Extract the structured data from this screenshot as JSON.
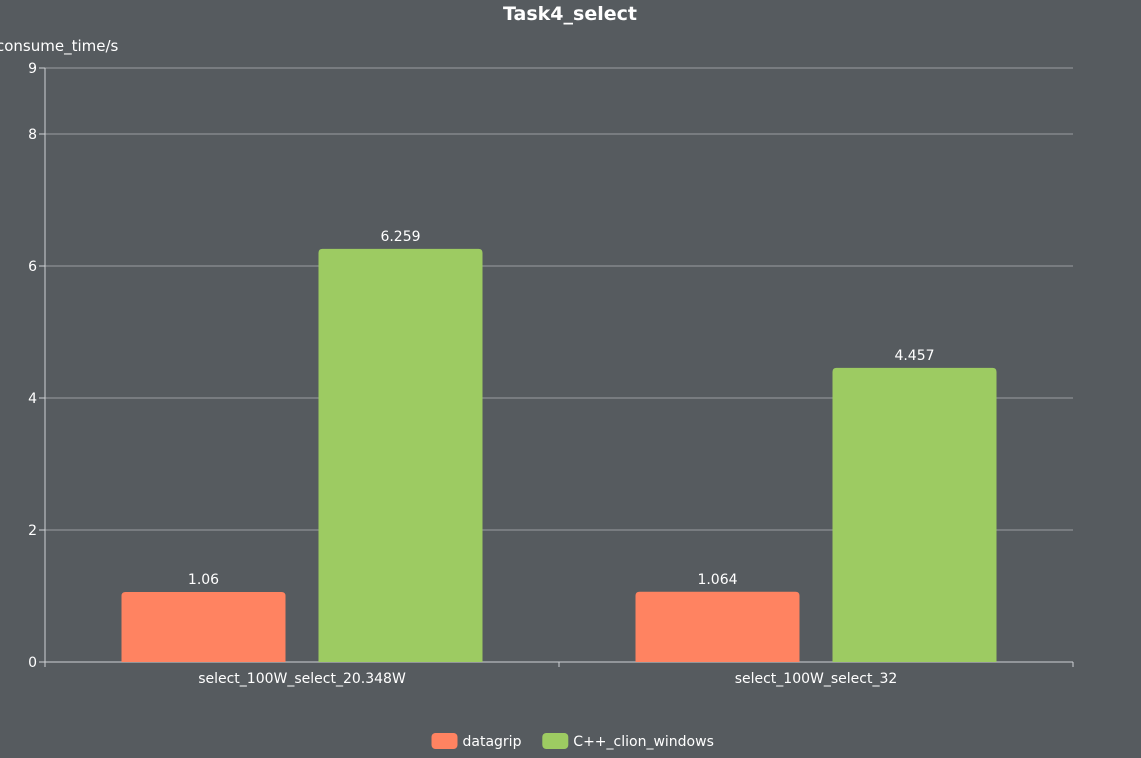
{
  "colors": {
    "background": "#565b5f",
    "text": "#ffffff",
    "grid": "#9a9ea2",
    "axis": "#cfd2d4"
  },
  "chart_data": {
    "type": "bar",
    "title": "Task4_select",
    "xlabel": "",
    "ylabel": "consume_time/s",
    "categories": [
      "select_100W_select_20.348W",
      "select_100W_select_32"
    ],
    "series": [
      {
        "name": "datagrip",
        "values": [
          1.06,
          1.064
        ],
        "color": "#ff8361"
      },
      {
        "name": "C++_clion_windows",
        "values": [
          6.259,
          4.457
        ],
        "color": "#9dcb62"
      }
    ],
    "ylim": [
      0,
      9
    ],
    "yticks": [
      0,
      2,
      4,
      6,
      8,
      9
    ],
    "grid": true,
    "legend": "bottom-center",
    "data_labels": true
  }
}
